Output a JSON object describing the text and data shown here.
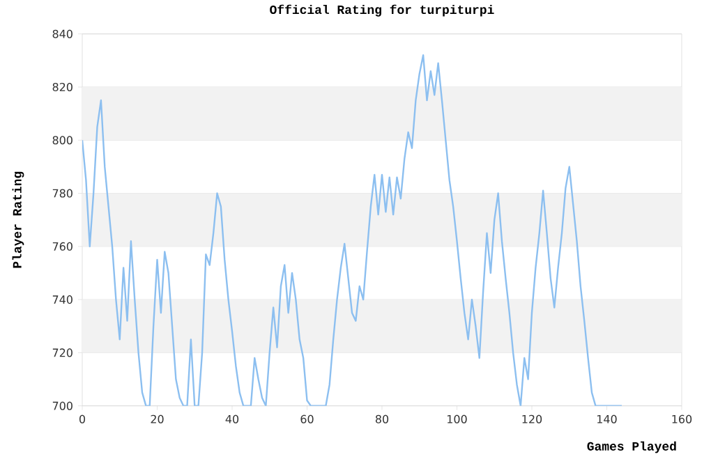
{
  "chart_data": {
    "type": "line",
    "title": "Official Rating for turpiturpi",
    "xlabel": "Games Played",
    "ylabel": "Player Rating",
    "xlim": [
      0,
      160
    ],
    "xticks": [
      0,
      20,
      40,
      60,
      80,
      100,
      120,
      140,
      160
    ],
    "ylim": [
      700,
      840
    ],
    "yticks": [
      700,
      720,
      740,
      760,
      780,
      800,
      820,
      840
    ],
    "grid": "y",
    "marker": "none",
    "line_style": "solid",
    "series": [
      {
        "color": "#8cbff0",
        "x": [
          0,
          1,
          2,
          3,
          4,
          5,
          6,
          7,
          8,
          9,
          10,
          11,
          12,
          13,
          14,
          15,
          16,
          17,
          18,
          19,
          20,
          21,
          22,
          23,
          24,
          25,
          26,
          27,
          28,
          29,
          30,
          31,
          32,
          33,
          34,
          35,
          36,
          37,
          38,
          39,
          40,
          41,
          42,
          43,
          44,
          45,
          46,
          47,
          48,
          49,
          50,
          51,
          52,
          53,
          54,
          55,
          56,
          57,
          58,
          59,
          60,
          61,
          65,
          66,
          67,
          68,
          69,
          70,
          71,
          72,
          73,
          74,
          75,
          76,
          77,
          78,
          79,
          80,
          81,
          82,
          83,
          84,
          85,
          86,
          87,
          88,
          89,
          90,
          91,
          92,
          93,
          94,
          95,
          96,
          97,
          98,
          99,
          100,
          101,
          102,
          103,
          104,
          105,
          106,
          107,
          108,
          109,
          110,
          111,
          112,
          113,
          114,
          115,
          116,
          117,
          118,
          119,
          120,
          121,
          122,
          123,
          124,
          125,
          126,
          127,
          128,
          129,
          130,
          131,
          132,
          133,
          134,
          135,
          136,
          137,
          144
        ],
        "values": [
          800,
          785,
          760,
          780,
          805,
          815,
          790,
          775,
          760,
          740,
          725,
          752,
          732,
          762,
          740,
          720,
          705,
          700,
          700,
          730,
          755,
          735,
          758,
          750,
          730,
          710,
          703,
          700,
          700,
          725,
          700,
          700,
          720,
          757,
          753,
          765,
          780,
          775,
          755,
          740,
          728,
          715,
          705,
          700,
          700,
          700,
          718,
          710,
          703,
          700,
          720,
          737,
          722,
          745,
          753,
          735,
          750,
          740,
          725,
          718,
          702,
          700,
          700,
          708,
          725,
          740,
          752,
          761,
          748,
          735,
          732,
          745,
          740,
          758,
          775,
          787,
          772,
          787,
          773,
          786,
          772,
          786,
          778,
          793,
          803,
          797,
          815,
          825,
          832,
          815,
          826,
          817,
          829,
          815,
          800,
          785,
          775,
          762,
          748,
          735,
          725,
          740,
          730,
          718,
          743,
          765,
          750,
          770,
          780,
          762,
          748,
          735,
          720,
          708,
          700,
          718,
          710,
          735,
          752,
          765,
          781,
          765,
          748,
          737,
          752,
          765,
          782,
          790,
          776,
          762,
          745,
          732,
          718,
          705,
          700,
          700
        ]
      }
    ]
  }
}
